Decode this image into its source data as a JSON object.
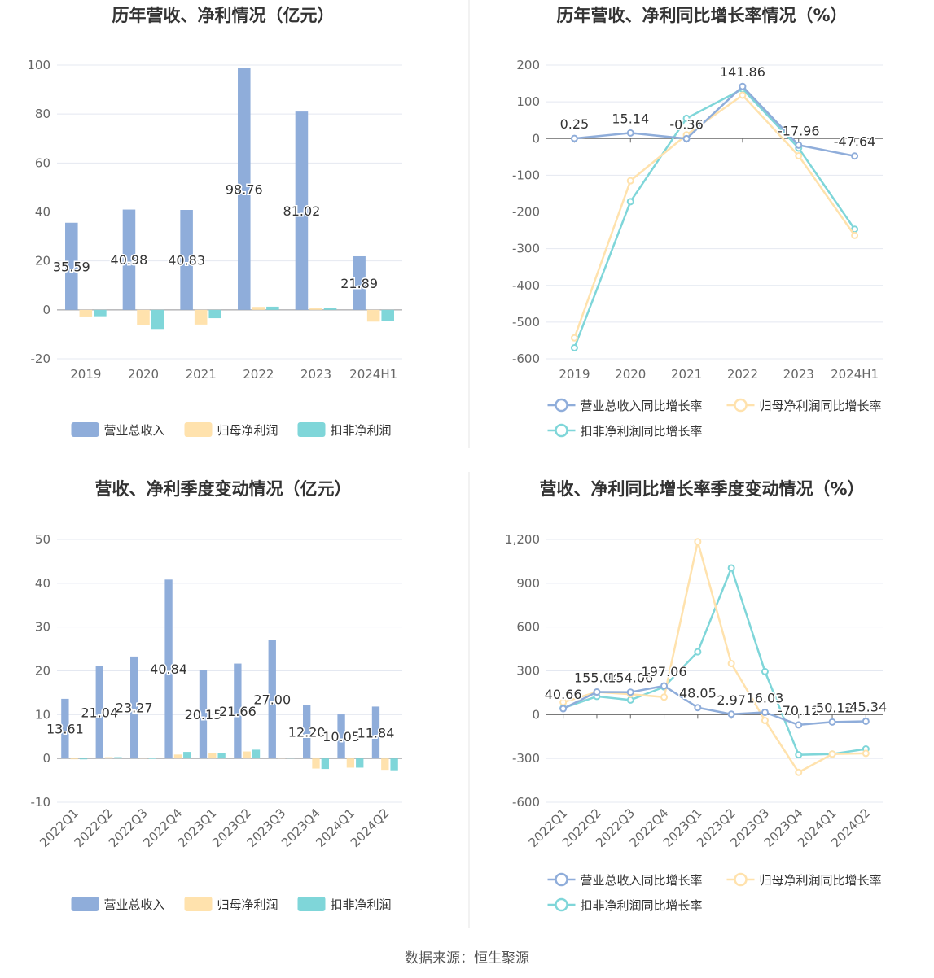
{
  "source": "数据来源：恒生聚源",
  "colors": {
    "revenue": "#8fadda",
    "parent_profit": "#ffe2ad",
    "deducted_profit": "#7fd6d9",
    "grid": "#e4e8f1",
    "axis_text": "#666666",
    "title": "#333333",
    "divider": "#e6e6e6"
  },
  "chart_data": [
    {
      "type": "bar",
      "title": "历年营收、净利情况（亿元）",
      "categories": [
        "2019",
        "2020",
        "2021",
        "2022",
        "2023",
        "2024H1"
      ],
      "ylim": [
        -20,
        100
      ],
      "yticks": [
        "100",
        "80",
        "60",
        "40",
        "20",
        "0",
        "-20"
      ],
      "series": [
        {
          "name": "营业总收入",
          "values": [
            35.59,
            40.98,
            40.83,
            98.76,
            81.02,
            21.89
          ],
          "labels": [
            "35.59",
            "40.98",
            "40.83",
            "98.76",
            "81.02",
            "21.89"
          ]
        },
        {
          "name": "归母净利润",
          "values": [
            -2.7,
            -6.3,
            -6.0,
            1.2,
            0.6,
            -4.8
          ]
        },
        {
          "name": "扣非净利润",
          "values": [
            -2.6,
            -7.8,
            -3.4,
            1.3,
            0.8,
            -4.7
          ]
        }
      ],
      "legend": "bottom",
      "grid": true
    },
    {
      "type": "line",
      "title": "历年营收、净利同比增长率情况（%）",
      "categories": [
        "2019",
        "2020",
        "2021",
        "2022",
        "2023",
        "2024H1"
      ],
      "ylim": [
        -600,
        200
      ],
      "yticks": [
        "200",
        "100",
        "0",
        "-100",
        "-200",
        "-300",
        "-400",
        "-500",
        "-600"
      ],
      "series": [
        {
          "name": "营业总收入同比增长率",
          "values": [
            0.25,
            15.14,
            -0.36,
            141.86,
            -17.96,
            -47.64
          ],
          "labels": [
            "0.25",
            "15.14",
            "-0.36",
            "141.86",
            "-17.96",
            "-47.64"
          ]
        },
        {
          "name": "归母净利润同比增长率",
          "values": [
            -543,
            -115,
            10,
            118,
            -47,
            -264
          ]
        },
        {
          "name": "扣非净利润同比增长率",
          "values": [
            -570,
            -172,
            55,
            135,
            -26,
            -247
          ]
        }
      ],
      "legend": "bottom",
      "grid": true
    },
    {
      "type": "bar",
      "title": "营收、净利季度变动情况（亿元）",
      "categories": [
        "2022Q1",
        "2022Q2",
        "2022Q3",
        "2022Q4",
        "2023Q1",
        "2023Q2",
        "2023Q3",
        "2023Q4",
        "2024Q1",
        "2024Q2"
      ],
      "ylim": [
        -10,
        50
      ],
      "yticks": [
        "50",
        "40",
        "30",
        "20",
        "10",
        "0",
        "-10"
      ],
      "series": [
        {
          "name": "营业总收入",
          "values": [
            13.61,
            21.04,
            23.27,
            40.84,
            20.15,
            21.66,
            27.0,
            12.2,
            10.05,
            11.84
          ],
          "labels": [
            "13.61",
            "21.04",
            "23.27",
            "40.84",
            "20.15",
            "21.66",
            "27.00",
            "12.20",
            "10.05",
            "11.84"
          ]
        },
        {
          "name": "归母净利润",
          "values": [
            -0.1,
            0.3,
            0.2,
            0.9,
            1.2,
            1.6,
            0.2,
            -2.3,
            -2.1,
            -2.6
          ]
        },
        {
          "name": "扣非净利润",
          "values": [
            -0.2,
            0.3,
            0.1,
            1.5,
            1.3,
            2.0,
            0.2,
            -2.4,
            -2.1,
            -2.7
          ]
        }
      ],
      "legend": "bottom",
      "grid": true
    },
    {
      "type": "line",
      "title": "营收、净利同比增长率季度变动情况（%）",
      "categories": [
        "2022Q1",
        "2022Q2",
        "2022Q3",
        "2022Q4",
        "2023Q1",
        "2023Q2",
        "2023Q3",
        "2023Q4",
        "2024Q1",
        "2024Q2"
      ],
      "ylim": [
        -600,
        1200
      ],
      "yticks": [
        "1,200",
        "900",
        "600",
        "300",
        "0",
        "-300",
        "-600"
      ],
      "series": [
        {
          "name": "营业总收入同比增长率",
          "values": [
            40.66,
            155.04,
            154.06,
            197.06,
            48.05,
            2.97,
            16.03,
            -70.12,
            -50.12,
            -45.34
          ],
          "labels": [
            "40.66",
            "155.04",
            "154.06",
            "197.06",
            "48.05",
            "2.97",
            "16.03",
            "-70.12",
            "-50.12",
            "-45.34"
          ]
        },
        {
          "name": "归母净利润同比增长率",
          "values": [
            85,
            155,
            140,
            120,
            1185,
            350,
            -40,
            -395,
            -270,
            -265
          ]
        },
        {
          "name": "扣非净利润同比增长率",
          "values": [
            45,
            125,
            100,
            190,
            430,
            1005,
            295,
            -275,
            -270,
            -235
          ]
        }
      ],
      "legend": "bottom",
      "grid": true
    }
  ]
}
